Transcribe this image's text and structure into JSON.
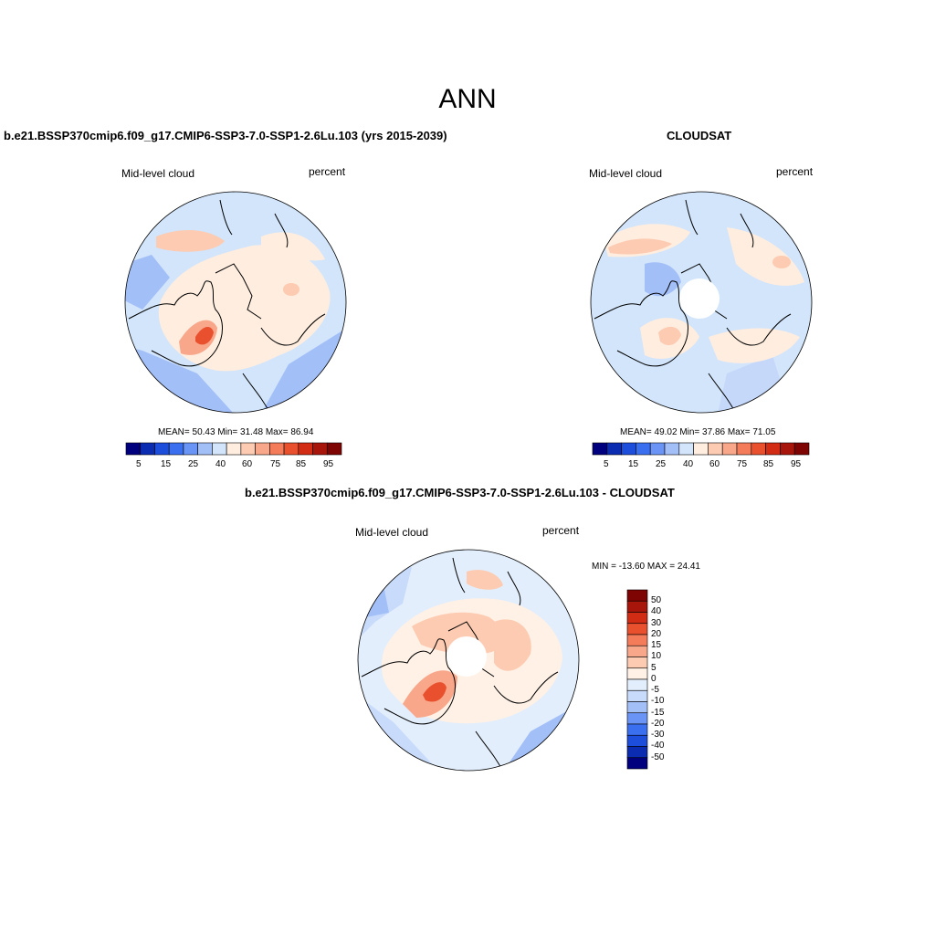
{
  "page_title": "ANN",
  "colors": {
    "palette": [
      "#00007f",
      "#0b2bb0",
      "#1d4ddb",
      "#3a6ff0",
      "#6a94f5",
      "#a3bff8",
      "#d2e5fb",
      "#ffeddf",
      "#fdcbb1",
      "#f9a78a",
      "#f47c5a",
      "#e8502e",
      "#d22c14",
      "#a8150a",
      "#7e0404"
    ],
    "diff_palette": [
      "#00007f",
      "#0b2bb0",
      "#1d4ddb",
      "#3a6ff0",
      "#6a94f5",
      "#a3bff8",
      "#c9dbfa",
      "#e3eefc",
      "#fff1e6",
      "#fdcbb1",
      "#f9a78a",
      "#f47c5a",
      "#e8502e",
      "#d22c14",
      "#a8150a",
      "#7e0404"
    ]
  },
  "panels": [
    {
      "title": "b.e21.BSSP370cmip6.f09_g17.CMIP6-SSP3-7.0-SSP1-2.6Lu.103 (yrs 2015-2039)",
      "variable": "Mid-level cloud",
      "units": "percent",
      "stats": "MEAN=  50.43  Min=  31.48  Max=  86.94",
      "colorbar_ticks": [
        "5",
        "15",
        "25",
        "40",
        "60",
        "75",
        "85",
        "95"
      ]
    },
    {
      "title": "CLOUDSAT",
      "variable": "Mid-level cloud",
      "units": "percent",
      "stats": "MEAN=  49.02  Min=  37.86  Max=  71.05",
      "colorbar_ticks": [
        "5",
        "15",
        "25",
        "40",
        "60",
        "75",
        "85",
        "95"
      ]
    },
    {
      "title": "b.e21.BSSP370cmip6.f09_g17.CMIP6-SSP3-7.0-SSP1-2.6Lu.103 - CLOUDSAT",
      "variable": "Mid-level cloud",
      "units": "percent",
      "stats": "MIN = -13.60 MAX =  24.41",
      "colorbar_ticks": [
        "50",
        "40",
        "30",
        "20",
        "15",
        "10",
        "5",
        "0",
        "-5",
        "-10",
        "-15",
        "-20",
        "-30",
        "-40",
        "-50"
      ]
    }
  ]
}
